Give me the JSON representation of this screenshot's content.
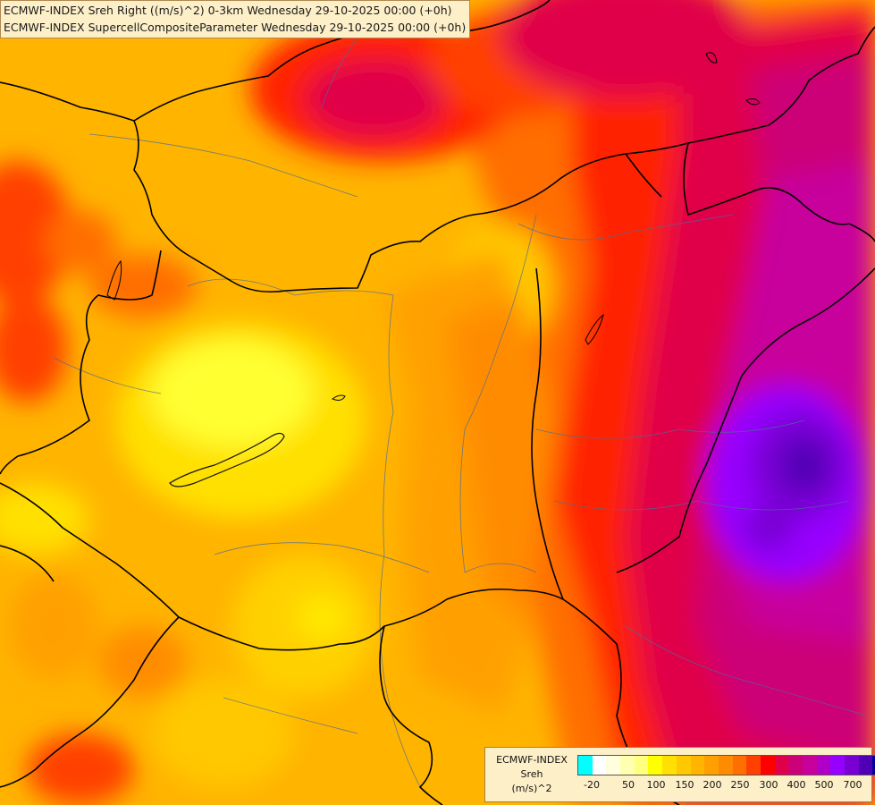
{
  "title": {
    "line1": "ECMWF-INDEX Sreh Right ((m/s)^2) 0-3km Wednesday 29-10-2025 00:00 (+0h)",
    "line2": "ECMWF-INDEX SupercellCompositeParameter Wednesday 29-10-2025 00:00 (+0h)"
  },
  "legend": {
    "model": "ECMWF-INDEX",
    "variable": "Sreh",
    "unit": "(m/s)^2",
    "colors": [
      "#00ffff",
      "#ffffff",
      "#ffffe0",
      "#ffffb0",
      "#ffff80",
      "#ffff00",
      "#ffe000",
      "#ffc800",
      "#ffb400",
      "#ffa000",
      "#ff8c00",
      "#ff6e00",
      "#ff4000",
      "#ff0000",
      "#e0004a",
      "#cc0077",
      "#c8009c",
      "#b000c8",
      "#9600ff",
      "#7800d2",
      "#5000b4",
      "#000096"
    ],
    "ticks": [
      "-20",
      "50",
      "100",
      "150",
      "200",
      "250",
      "300",
      "400",
      "500",
      "700"
    ]
  },
  "map": {
    "region": "Hungary and surrounding Central Europe",
    "max_area": "purple-violet core over Romania (Transylvania), 500-700 (m/s)^2",
    "min_area": "yellow over western Hungary / Lake Balaton, ~100-150 (m/s)^2",
    "features": [
      "country borders",
      "rivers",
      "Lake Balaton"
    ]
  }
}
